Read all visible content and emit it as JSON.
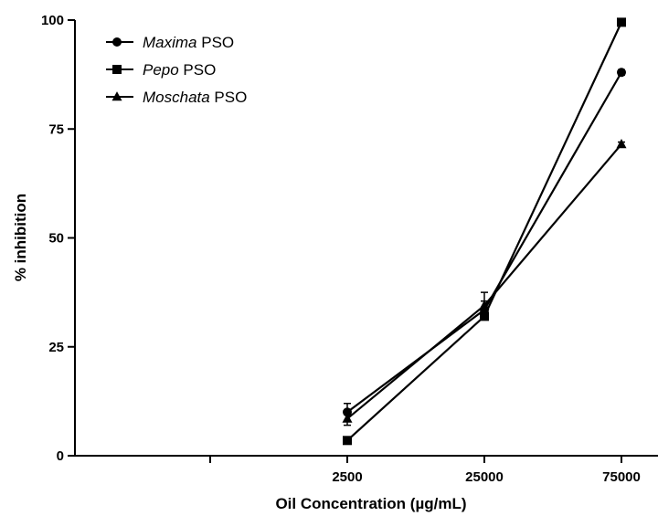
{
  "chart_data": {
    "type": "line",
    "categories": [
      "2500",
      "25000",
      "75000"
    ],
    "category_positions": [
      2,
      3,
      4
    ],
    "x_axis_slots": 4,
    "series": [
      {
        "name": "Maxima",
        "name_suffix": " PSO",
        "marker": "circle",
        "values": [
          10.0,
          33.5,
          88.0
        ],
        "errors": [
          2.0,
          2.0,
          0.6
        ]
      },
      {
        "name": "Pepo",
        "name_suffix": " PSO",
        "marker": "square",
        "values": [
          3.5,
          32.0,
          99.5
        ],
        "errors": [
          0.5,
          0.8,
          0.4
        ]
      },
      {
        "name": "Moschata",
        "name_suffix": " PSO",
        "marker": "triangle",
        "values": [
          8.5,
          34.5,
          71.5
        ],
        "errors": [
          1.5,
          3.0,
          0.5
        ]
      }
    ],
    "xlabel": "Oil Concentration (µg/mL)",
    "ylabel": "% inhibition",
    "ylim": [
      0,
      100
    ],
    "yticks": [
      0,
      25,
      50,
      75,
      100
    ],
    "legend_position": "top-left",
    "grid": false,
    "line_color": "#000000"
  }
}
